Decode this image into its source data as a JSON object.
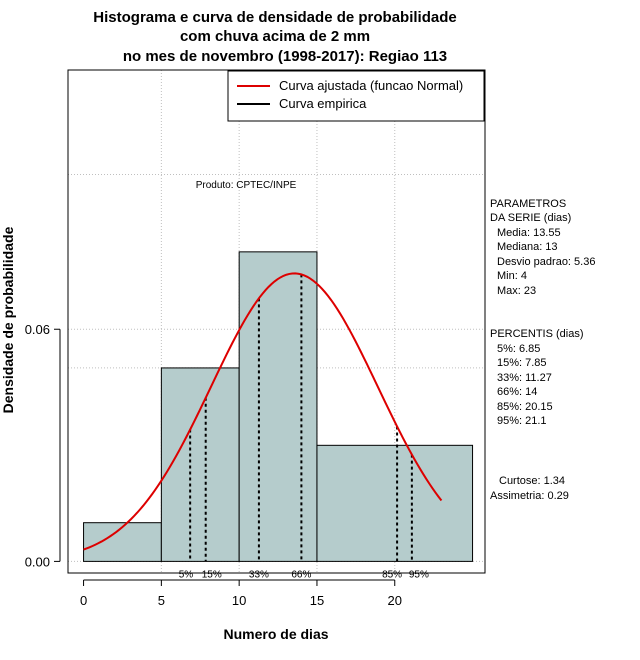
{
  "chart_data": {
    "type": "bar",
    "title_lines": [
      "Histograma e curva de densidade de probabilidade",
      "com chuva acima de 2 mm",
      "no mes de novembro (1998-2017): Regiao 113"
    ],
    "xlabel": "Numero de dias",
    "ylabel": "Densidade de probabilidade",
    "xlim": [
      -1,
      25.8
    ],
    "ylim": [
      -0.003,
      0.127
    ],
    "x_ticks": [
      0,
      5,
      10,
      15,
      20
    ],
    "x_tick_labels": [
      "0",
      "5",
      "10",
      "15",
      "20"
    ],
    "y_ticks": [
      0.0,
      0.06
    ],
    "y_tick_labels": [
      "0.00",
      "0.06"
    ],
    "grid": true,
    "grid_x": [
      5,
      10,
      15,
      20
    ],
    "grid_y": [
      0.0,
      0.05,
      0.06,
      0.1
    ],
    "bins": [
      {
        "start": 0,
        "end": 5,
        "density": 0.01
      },
      {
        "start": 5,
        "end": 10,
        "density": 0.05
      },
      {
        "start": 10,
        "end": 15,
        "density": 0.08
      },
      {
        "start": 15,
        "end": 25,
        "density": 0.03
      }
    ],
    "bar_color": "#b5cccc",
    "normal_curve": {
      "mean": 13.55,
      "sd": 5.36,
      "x_from": 0,
      "x_to": 23,
      "color": "#dd0000"
    },
    "percentile_lines": [
      {
        "label": "5%",
        "x": 6.85
      },
      {
        "label": "15%",
        "x": 7.85
      },
      {
        "label": "33%",
        "x": 11.27
      },
      {
        "label": "66%",
        "x": 14
      },
      {
        "label": "85%",
        "x": 20.15
      },
      {
        "label": "95%",
        "x": 21.1
      }
    ],
    "legend": {
      "position": "top-right",
      "entries": [
        {
          "label": "Curva ajustada (funcao Normal)",
          "color": "#dd0000"
        },
        {
          "label": "Curva empirica",
          "color": "#000000"
        }
      ]
    },
    "producer_note": "Produto: CPTEC/INPE",
    "parameters": {
      "heading": [
        "PARAMETROS",
        "DA SERIE (dias)"
      ],
      "lines": [
        "Media: 13.55",
        "Mediana: 13",
        "Desvio padrao: 5.36",
        "Min: 4",
        "Max: 23"
      ]
    },
    "percentiles": {
      "heading": "PERCENTIS (dias)",
      "lines": [
        "5%: 6.85",
        "15%: 7.85",
        "33%: 11.27",
        "66%: 14",
        "85%: 20.15",
        "95%: 21.1"
      ]
    },
    "stats": [
      "Curtose: 1.34",
      "Assimetria: 0.29"
    ]
  }
}
